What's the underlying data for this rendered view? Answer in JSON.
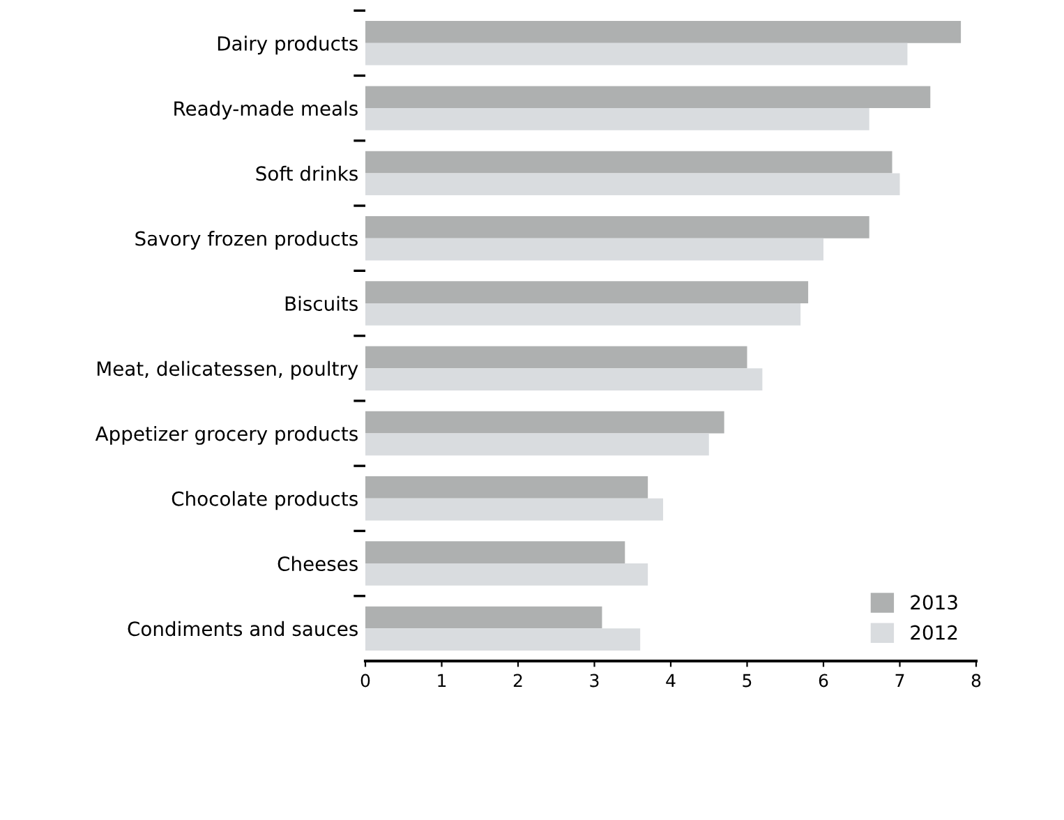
{
  "chart_data": {
    "type": "bar",
    "orientation": "horizontal",
    "categories": [
      "Dairy products",
      "Ready-made meals",
      "Soft drinks",
      "Savory frozen products",
      "Biscuits",
      "Meat, delicatessen, poultry",
      "Appetizer grocery products",
      "Chocolate products",
      "Cheeses",
      "Condiments and sauces"
    ],
    "series": [
      {
        "name": "2013",
        "color": "#aeb0b0",
        "values": [
          7.8,
          7.4,
          6.9,
          6.6,
          5.8,
          5.0,
          4.7,
          3.7,
          3.4,
          3.1
        ]
      },
      {
        "name": "2012",
        "color": "#d9dcdf",
        "values": [
          7.1,
          6.6,
          7.0,
          6.0,
          5.7,
          5.2,
          4.5,
          3.9,
          3.7,
          3.6
        ]
      }
    ],
    "xlim": [
      0,
      8
    ],
    "xticks": [
      0,
      1,
      2,
      3,
      4,
      5,
      6,
      7,
      8
    ],
    "grid": false,
    "legend": "bottom right"
  }
}
